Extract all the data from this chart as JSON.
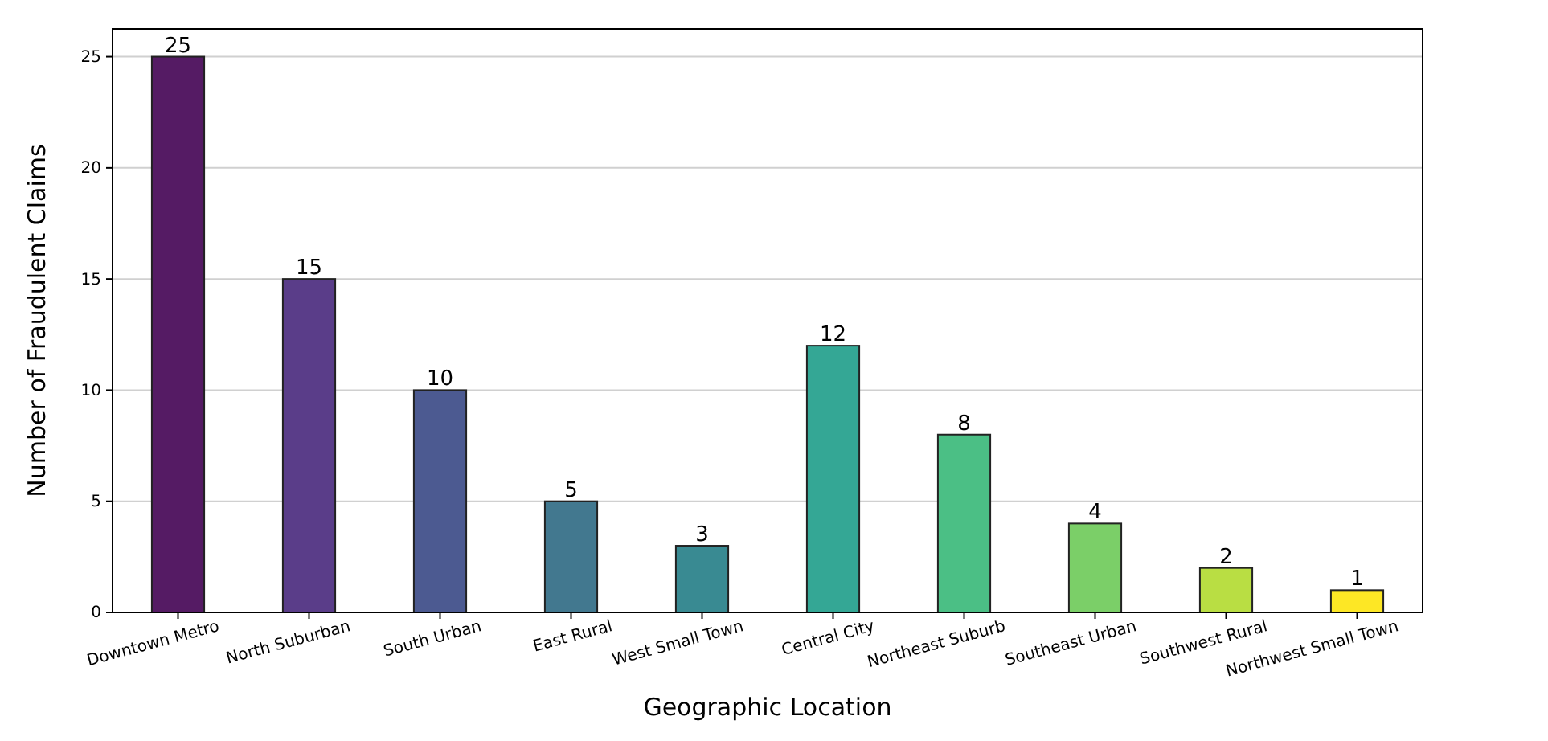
{
  "chart_data": {
    "type": "bar",
    "xlabel": "Geographic Location",
    "ylabel": "Number of Fraudulent Claims",
    "categories": [
      "Downtown Metro",
      "North Suburban",
      "South Urban",
      "East Rural",
      "West Small Town",
      "Central City",
      "Northeast Suburb",
      "Southeast Urban",
      "Southwest Rural",
      "Northwest Small Town"
    ],
    "values": [
      25,
      15,
      10,
      5,
      3,
      12,
      8,
      4,
      2,
      1
    ],
    "colors": [
      "#551b64",
      "#5a3d89",
      "#4c5a91",
      "#42788f",
      "#398a92",
      "#34a795",
      "#4bbf85",
      "#7bcf68",
      "#b9de43",
      "#fde725"
    ],
    "ylim": [
      0,
      26.25
    ],
    "yticks": [
      0,
      5,
      10,
      15,
      20,
      25
    ],
    "grid": "y",
    "data_labels": true
  }
}
